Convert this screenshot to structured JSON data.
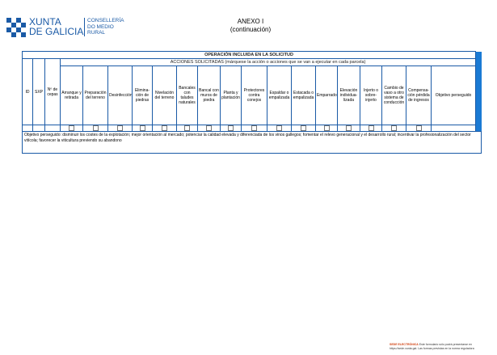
{
  "header": {
    "logo_line1": "XUNTA",
    "logo_line2": "DE GALICIA",
    "department_line1": "CONSELLERÍA",
    "department_line2": "DO MEDIO",
    "department_line3": "RURAL",
    "title": "ANEXO I",
    "subtitle": "(continuación)"
  },
  "table": {
    "title": "OPERACIÓN INCLUIDA EN LA SOLICITUD",
    "actions_title": "ACCIONES SOLICITADAS (márquese la acción o acciones que se van a ejecutar en cada parcela)",
    "fixed_columns": [
      "ID",
      "SXP",
      "Nº de cepas"
    ],
    "actions": [
      "Arranque y retirada",
      "Preparación del terreno",
      "Desinfección",
      "Elimina-ción de piedras",
      "Nivelación del terreno",
      "Bancales con taludes naturales",
      "Bancal con muros de piedra",
      "Planta y plantación",
      "Protectores contra conejos",
      "Espaldar o empalizada",
      "Estacada o empalizada",
      "Emparrado",
      "Elevación individua-lizada",
      "Injerto o sobre-injerto",
      "Cambio de vaso a otro sistema de conducción",
      "Compensa-ción pérdida de ingresos"
    ],
    "last_column": "Objetivo perseguido",
    "note": "Objetivo perseguido: disminuir los costes de la explotación; mejor orientación al mercado; potenciar la calidad elevada y diferenciada de los vinos gallegos; fomentar el relevo generacional y el desarrollo rural; incentivar la profesionalización del sector vitícola; favorecer la viticultura previendo su abandono"
  },
  "footer": {
    "badge": "SEDE ELECTRÓNICA",
    "text": "Este formulario sólo podrá presentarse en https://sede.xunta.gal. Las formas previstas en la norma reguladora"
  }
}
